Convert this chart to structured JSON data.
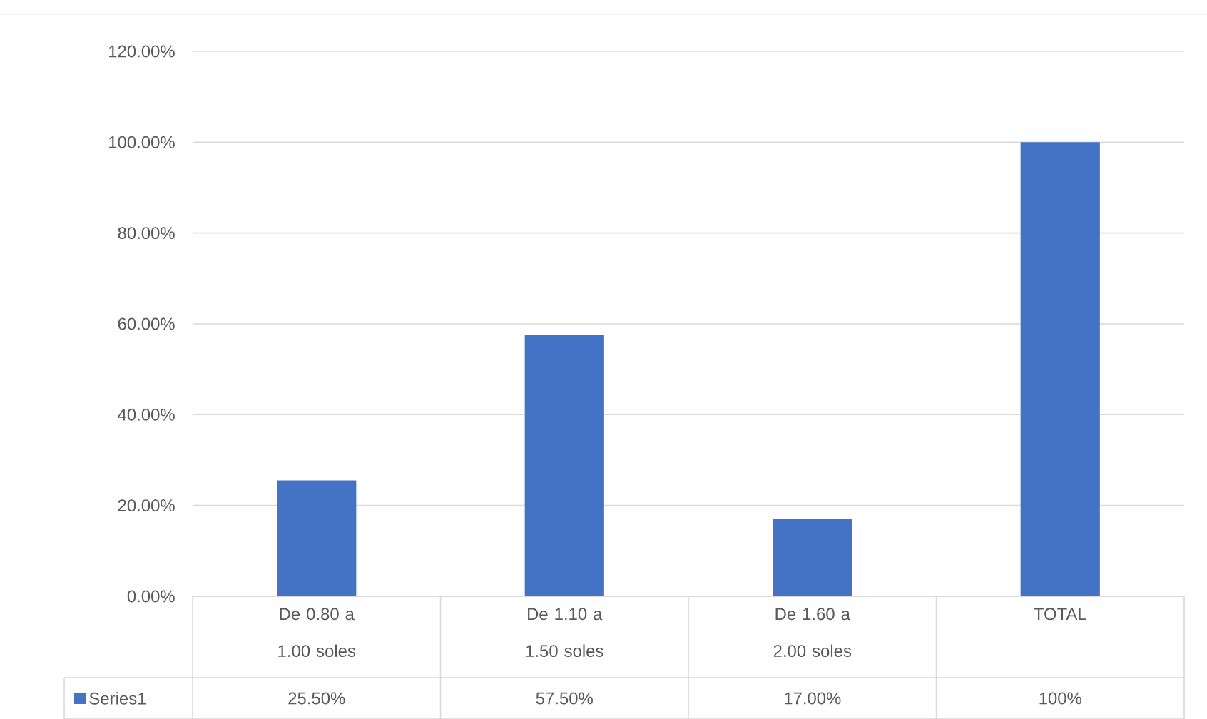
{
  "chart_data": {
    "type": "bar",
    "categories": [
      "De 0.80 a 1.00 soles",
      "De 1.10 a 1.50 soles",
      "De 1.60 a 2.00 soles",
      "TOTAL"
    ],
    "series": [
      {
        "name": "Series1",
        "color": "#4472c4",
        "values": [
          25.5,
          57.5,
          17,
          100
        ],
        "value_labels": [
          "25.50%",
          "57.50%",
          "17.00%",
          "100%"
        ]
      }
    ],
    "ylim": [
      0,
      120
    ],
    "yticks": [
      {
        "value": 0,
        "label": "0.00%"
      },
      {
        "value": 20,
        "label": "20.00%"
      },
      {
        "value": 40,
        "label": "40.00%"
      },
      {
        "value": 60,
        "label": "60.00%"
      },
      {
        "value": 80,
        "label": "80.00%"
      },
      {
        "value": 100,
        "label": "100.00%"
      },
      {
        "value": 120,
        "label": "120.00%"
      }
    ],
    "grid": "y",
    "legend": "bottom"
  }
}
